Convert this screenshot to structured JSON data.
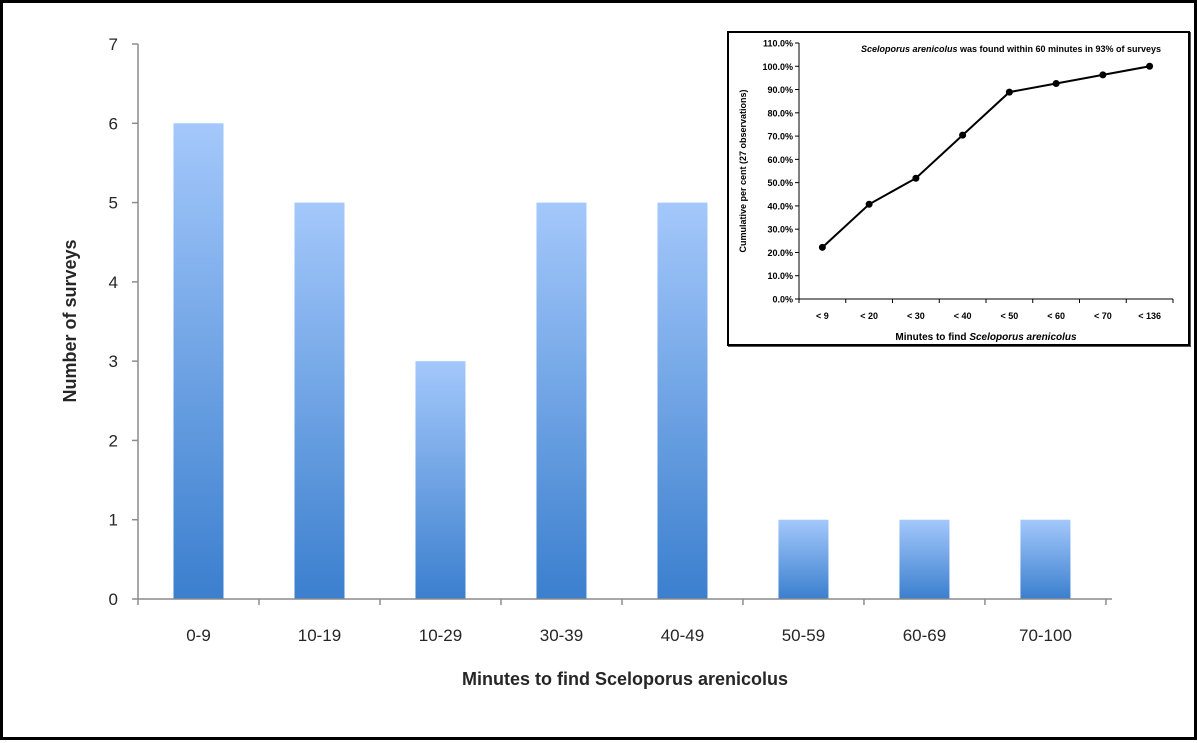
{
  "chart_data": [
    {
      "type": "bar",
      "xlabel": "Minutes to find Sceloporus arenicolus",
      "ylabel": "Number of surveys",
      "categories": [
        "0-9",
        "10-19",
        "10-29",
        "30-39",
        "40-49",
        "50-59",
        "60-69",
        "70-100"
      ],
      "values": [
        6,
        5,
        3,
        5,
        5,
        1,
        1,
        1
      ],
      "ylim": [
        0,
        7
      ],
      "yticks": [
        0,
        1,
        2,
        3,
        4,
        5,
        6,
        7
      ],
      "grid": false,
      "colors": {
        "bar_top": "#a4c8fb",
        "bar_bottom": "#3b7fce"
      }
    },
    {
      "type": "line",
      "title_italic": "Sceloporus arenicolus",
      "title_rest": " was found within 60 minutes in 93% of surveys",
      "xlabel_prefix": "Minutes to find ",
      "xlabel_italic": "Sceloporus arenicolus",
      "ylabel": "Cumulative per cent (27 observations)",
      "categories": [
        "< 9",
        "< 20",
        "< 30",
        "< 40",
        "< 50",
        "< 60",
        "< 70",
        "< 136"
      ],
      "values": [
        22.2,
        40.7,
        51.9,
        70.4,
        88.9,
        92.6,
        96.3,
        100.0
      ],
      "ylim": [
        0,
        110
      ],
      "yticks": [
        "0.0%",
        "10.0%",
        "20.0%",
        "30.0%",
        "40.0%",
        "50.0%",
        "60.0%",
        "70.0%",
        "80.0%",
        "90.0%",
        "100.0%",
        "110.0%"
      ],
      "grid": false,
      "colors": {
        "line": "#000000",
        "marker": "#000000"
      }
    }
  ]
}
